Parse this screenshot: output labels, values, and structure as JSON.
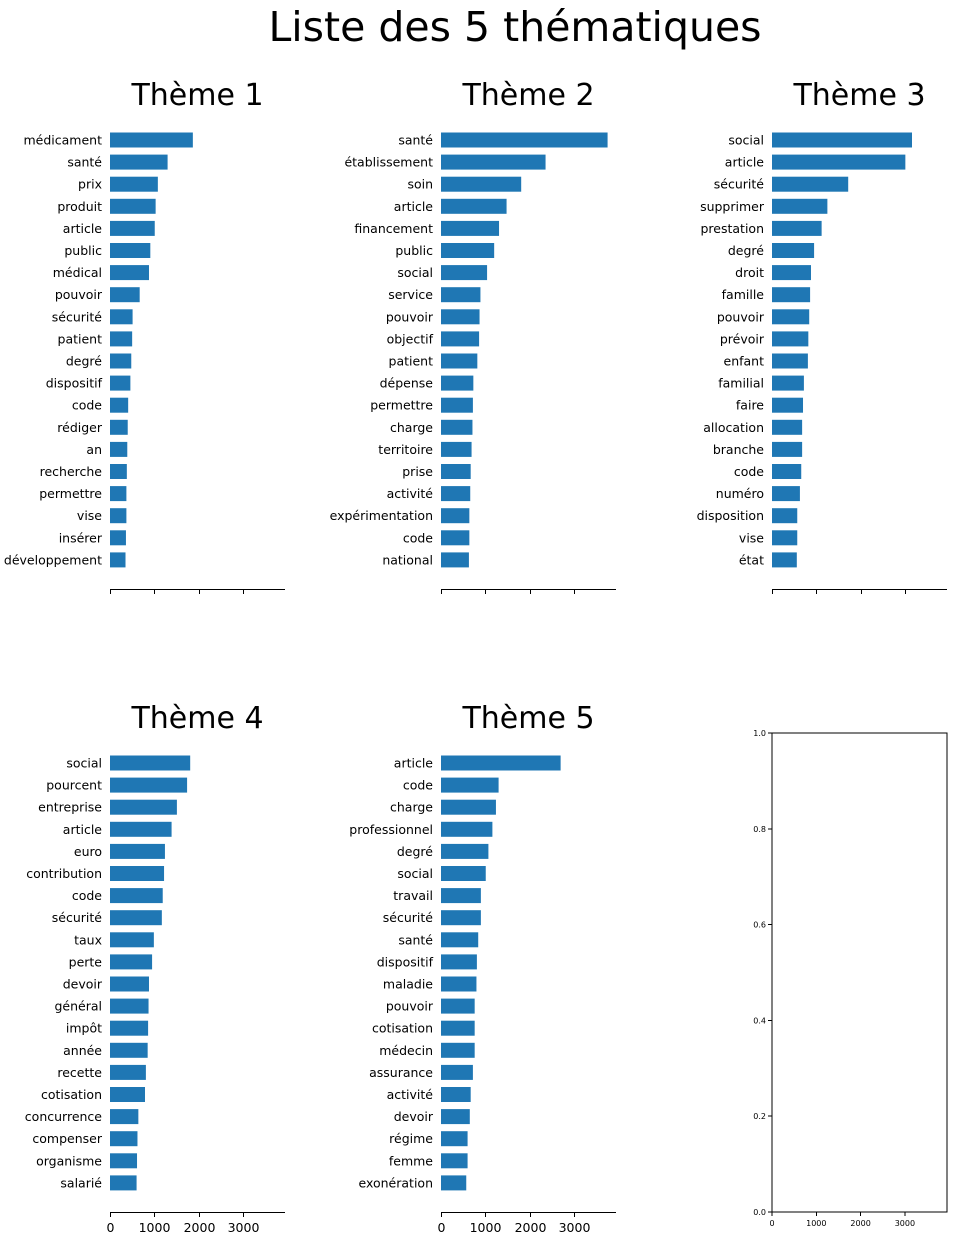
{
  "figure": {
    "suptitle": "Liste des 5 thématiques"
  },
  "chart_data": [
    {
      "type": "bar",
      "orientation": "horizontal",
      "title": "Thème 1",
      "xlim": [
        0,
        3950
      ],
      "xticks": [
        0,
        1000,
        2000,
        3000
      ],
      "show_xtick_labels": false,
      "categories": [
        "médicament",
        "santé",
        "prix",
        "produit",
        "article",
        "public",
        "médical",
        "pouvoir",
        "sécurité",
        "patient",
        "degré",
        "dispositif",
        "code",
        "rédiger",
        "an",
        "recherche",
        "permettre",
        "vise",
        "insérer",
        "développement"
      ],
      "values": [
        1870,
        1300,
        1080,
        1030,
        1010,
        910,
        880,
        670,
        510,
        500,
        480,
        460,
        410,
        400,
        390,
        380,
        370,
        370,
        360,
        350
      ]
    },
    {
      "type": "bar",
      "orientation": "horizontal",
      "title": "Thème 2",
      "xlim": [
        0,
        3950
      ],
      "xticks": [
        0,
        1000,
        2000,
        3000
      ],
      "show_xtick_labels": false,
      "categories": [
        "santé",
        "établissement",
        "soin",
        "article",
        "financement",
        "public",
        "social",
        "service",
        "pouvoir",
        "objectif",
        "patient",
        "dépense",
        "permettre",
        "charge",
        "territoire",
        "prise",
        "activité",
        "expérimentation",
        "code",
        "national"
      ],
      "values": [
        3760,
        2360,
        1810,
        1480,
        1310,
        1200,
        1040,
        890,
        870,
        860,
        820,
        730,
        720,
        710,
        690,
        670,
        660,
        640,
        640,
        630
      ]
    },
    {
      "type": "bar",
      "orientation": "horizontal",
      "title": "Thème 3",
      "xlim": [
        0,
        3950
      ],
      "xticks": [
        0,
        1000,
        2000,
        3000
      ],
      "show_xtick_labels": false,
      "categories": [
        "social",
        "article",
        "sécurité",
        "supprimer",
        "prestation",
        "degré",
        "droit",
        "famille",
        "pouvoir",
        "prévoir",
        "enfant",
        "familial",
        "faire",
        "allocation",
        "branche",
        "code",
        "numéro",
        "disposition",
        "vise",
        "état"
      ],
      "values": [
        3160,
        3010,
        1720,
        1250,
        1120,
        950,
        880,
        860,
        840,
        820,
        810,
        720,
        700,
        680,
        680,
        660,
        630,
        570,
        570,
        560
      ]
    },
    {
      "type": "bar",
      "orientation": "horizontal",
      "title": "Thème 4",
      "xlim": [
        0,
        3950
      ],
      "xticks": [
        0,
        1000,
        2000,
        3000
      ],
      "show_xtick_labels": true,
      "categories": [
        "social",
        "pourcent",
        "entreprise",
        "article",
        "euro",
        "contribution",
        "code",
        "sécurité",
        "taux",
        "perte",
        "devoir",
        "général",
        "impôt",
        "année",
        "recette",
        "cotisation",
        "concurrence",
        "compenser",
        "organisme",
        "salarié"
      ],
      "values": [
        1810,
        1740,
        1510,
        1390,
        1240,
        1220,
        1190,
        1170,
        990,
        950,
        880,
        870,
        860,
        850,
        810,
        790,
        640,
        620,
        610,
        600
      ]
    },
    {
      "type": "bar",
      "orientation": "horizontal",
      "title": "Thème 5",
      "xlim": [
        0,
        3950
      ],
      "xticks": [
        0,
        1000,
        2000,
        3000
      ],
      "show_xtick_labels": true,
      "categories": [
        "article",
        "code",
        "charge",
        "professionnel",
        "degré",
        "social",
        "travail",
        "sécurité",
        "santé",
        "dispositif",
        "maladie",
        "pouvoir",
        "cotisation",
        "médecin",
        "assurance",
        "activité",
        "devoir",
        "régime",
        "femme",
        "exonération"
      ],
      "values": [
        2700,
        1300,
        1240,
        1160,
        1070,
        1010,
        900,
        900,
        840,
        810,
        800,
        760,
        760,
        760,
        720,
        670,
        650,
        600,
        600,
        570
      ]
    },
    {
      "type": "bar",
      "orientation": "horizontal",
      "title": "",
      "xlim": [
        0,
        3950
      ],
      "ylim": [
        0,
        1.0
      ],
      "xticks": [
        0,
        1000,
        2000,
        3000
      ],
      "yticks": [
        "0.0",
        "0.2",
        "0.4",
        "0.6",
        "0.8",
        "1.0"
      ],
      "empty": true,
      "categories": [],
      "values": []
    }
  ]
}
